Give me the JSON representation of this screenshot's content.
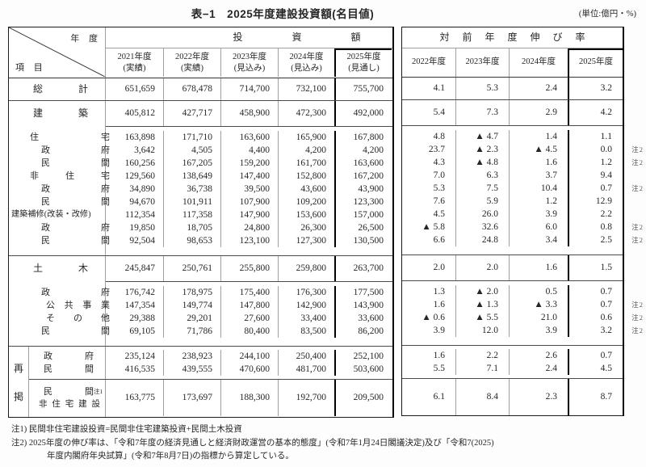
{
  "title": "表−1　2025年度建設投資額(名目値)",
  "unit_label": "(単位:億円・%)",
  "note_ref": "注2",
  "left_table": {
    "corner_top": "年 度",
    "corner_bottom": "項 目",
    "group_header": "投 資 額",
    "col_headers": [
      {
        "line1": "2021年度",
        "line2": "(実績)"
      },
      {
        "line1": "2022年度",
        "line2": "(実績)"
      },
      {
        "line1": "2023年度",
        "line2": "(見込み)"
      },
      {
        "line1": "2024年度",
        "line2": "(見込み)"
      },
      {
        "line1": "2025年度",
        "line2": "(見通し)"
      }
    ]
  },
  "right_table": {
    "group_header": "対 前 年 度 伸 び 率",
    "col_headers": [
      "2022年度",
      "2023年度",
      "2024年度",
      "2025年度"
    ]
  },
  "sections": [
    {
      "kind": "single",
      "rows": [
        {
          "label": "総 計",
          "indent": "sec",
          "invest": [
            "651,659",
            "678,478",
            "714,700",
            "732,100",
            "755,700"
          ],
          "growth": [
            "4.1",
            "5.3",
            "2.4",
            "3.2"
          ],
          "note2": false
        }
      ]
    },
    {
      "kind": "group",
      "header": {
        "label": "建 築",
        "indent": "sec",
        "invest": [
          "405,812",
          "427,717",
          "458,900",
          "472,300",
          "492,000"
        ],
        "growth": [
          "5.4",
          "7.3",
          "2.9",
          "4.2"
        ],
        "note2": false
      },
      "rows": [
        {
          "label": "住 宅",
          "indent": "l1",
          "invest": [
            "163,898",
            "171,710",
            "163,600",
            "165,900",
            "167,800"
          ],
          "growth": [
            "4.8",
            "▲ 4.7",
            "1.4",
            "1.1"
          ],
          "note2": false
        },
        {
          "label": "政 府",
          "indent": "l2",
          "invest": [
            "3,642",
            "4,505",
            "4,400",
            "4,200",
            "4,200"
          ],
          "growth": [
            "23.7",
            "▲ 2.3",
            "▲ 4.5",
            "0.0"
          ],
          "note2": true
        },
        {
          "label": "民 間",
          "indent": "l2",
          "invest": [
            "160,256",
            "167,205",
            "159,200",
            "161,700",
            "163,600"
          ],
          "growth": [
            "4.3",
            "▲ 4.8",
            "1.6",
            "1.2"
          ],
          "note2": true
        },
        {
          "label": "非 住 宅",
          "indent": "l1",
          "invest": [
            "129,560",
            "138,649",
            "147,400",
            "152,800",
            "167,200"
          ],
          "growth": [
            "7.0",
            "6.3",
            "3.7",
            "9.4"
          ],
          "note2": false
        },
        {
          "label": "政 府",
          "indent": "l2",
          "invest": [
            "34,890",
            "36,738",
            "39,500",
            "43,600",
            "43,900"
          ],
          "growth": [
            "5.3",
            "7.5",
            "10.4",
            "0.7"
          ],
          "note2": true
        },
        {
          "label": "民 間",
          "indent": "l2",
          "invest": [
            "94,670",
            "101,911",
            "107,900",
            "109,200",
            "123,300"
          ],
          "growth": [
            "7.6",
            "5.9",
            "1.2",
            "12.9"
          ],
          "note2": false
        },
        {
          "label": "建築補修(改装・改修)",
          "indent": "full",
          "invest": [
            "112,354",
            "117,358",
            "147,900",
            "153,600",
            "157,000"
          ],
          "growth": [
            "4.5",
            "26.0",
            "3.9",
            "2.2"
          ],
          "note2": false
        },
        {
          "label": "政 府",
          "indent": "l2",
          "invest": [
            "19,850",
            "18,705",
            "24,800",
            "26,300",
            "26,500"
          ],
          "growth": [
            "▲ 5.8",
            "32.6",
            "6.0",
            "0.8"
          ],
          "note2": true
        },
        {
          "label": "民 間",
          "indent": "l2",
          "invest": [
            "92,504",
            "98,653",
            "123,100",
            "127,300",
            "130,500"
          ],
          "growth": [
            "6.6",
            "24.8",
            "3.4",
            "2.5"
          ],
          "note2": true
        }
      ]
    },
    {
      "kind": "group",
      "header": {
        "label": "土 木",
        "indent": "sec",
        "invest": [
          "245,847",
          "250,761",
          "255,800",
          "259,800",
          "263,700"
        ],
        "growth": [
          "2.0",
          "2.0",
          "1.6",
          "1.5"
        ],
        "note2": false
      },
      "rows": [
        {
          "label": "政 府",
          "indent": "l2",
          "invest": [
            "176,742",
            "178,975",
            "175,400",
            "176,300",
            "177,500"
          ],
          "growth": [
            "1.3",
            "▲ 2.0",
            "0.5",
            "0.7"
          ],
          "note2": false
        },
        {
          "label": "公共事業",
          "indent": "l3",
          "invest": [
            "147,354",
            "149,774",
            "147,800",
            "142,900",
            "143,900"
          ],
          "growth": [
            "1.6",
            "▲ 1.3",
            "▲ 3.3",
            "0.7"
          ],
          "note2": true
        },
        {
          "label": "そ の 他",
          "indent": "l3",
          "invest": [
            "29,388",
            "29,201",
            "27,600",
            "33,400",
            "33,600"
          ],
          "growth": [
            "▲ 0.6",
            "▲ 5.5",
            "21.0",
            "0.6"
          ],
          "note2": true
        },
        {
          "label": "民 間",
          "indent": "l2",
          "invest": [
            "69,105",
            "71,786",
            "80,400",
            "83,500",
            "86,200"
          ],
          "growth": [
            "3.9",
            "12.0",
            "3.9",
            "3.2"
          ],
          "note2": true
        }
      ]
    },
    {
      "kind": "repost",
      "side_label": "再掲",
      "blocks": [
        {
          "rows": [
            {
              "label": "政 府",
              "indent": "r1",
              "invest": [
                "235,124",
                "238,923",
                "244,100",
                "250,400",
                "252,100"
              ],
              "growth": [
                "1.6",
                "2.2",
                "2.6",
                "0.7"
              ],
              "note2": false
            },
            {
              "label": "民 間",
              "indent": "r1",
              "invest": [
                "416,535",
                "439,555",
                "470,600",
                "481,700",
                "503,600"
              ],
              "growth": [
                "5.5",
                "7.1",
                "2.4",
                "4.5"
              ],
              "note2": false
            }
          ]
        },
        {
          "rows": [
            {
              "label": "民 間",
              "sup": "注1",
              "label2": "非住宅建設",
              "indent": "r1",
              "invest": [
                "163,775",
                "173,697",
                "188,300",
                "192,700",
                "209,500"
              ],
              "growth": [
                "6.1",
                "8.4",
                "2.3",
                "8.7"
              ],
              "note2": false
            }
          ]
        }
      ]
    }
  ],
  "footnotes": [
    "注1) 民間非住宅建設投資=民間非住宅建築投資+民間土木投資",
    "注2) 2025年度の伸び率は、「令和7年度の経済見通しと経済財政運営の基本的態度」(令和7年1月24日閣議決定)及び「令和7(2025)",
    "年度内閣府年央試算」(令和7年8月7日)の指標から算定している。"
  ]
}
